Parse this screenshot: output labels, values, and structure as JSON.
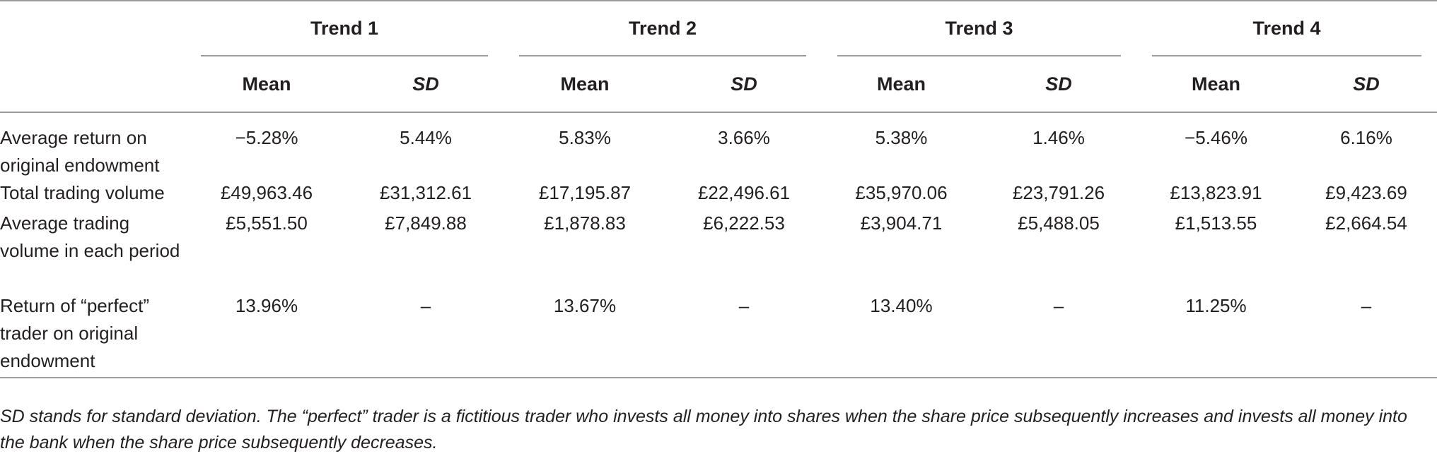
{
  "table": {
    "groups": [
      "Trend 1",
      "Trend 2",
      "Trend 3",
      "Trend 4"
    ],
    "subheaders": {
      "mean": "Mean",
      "sd": "SD"
    },
    "rows": [
      {
        "label": "Average return on original endowment",
        "values": [
          "−5.28%",
          "5.44%",
          "5.83%",
          "3.66%",
          "5.38%",
          "1.46%",
          "−5.46%",
          "6.16%"
        ]
      },
      {
        "label": "Total trading volume",
        "values": [
          "£49,963.46",
          "£31,312.61",
          "£17,195.87",
          "£22,496.61",
          "£35,970.06",
          "£23,791.26",
          "£13,823.91",
          "£9,423.69"
        ]
      },
      {
        "label": "Average trading volume in each period",
        "values": [
          "£5,551.50",
          "£7,849.88",
          "£1,878.83",
          "£6,222.53",
          "£3,904.71",
          "£5,488.05",
          "£1,513.55",
          "£2,664.54"
        ]
      },
      {
        "label": "Return of “perfect” trader on original endowment",
        "values": [
          "13.96%",
          "–",
          "13.67%",
          "–",
          "13.40%",
          "–",
          "11.25%",
          "–"
        ]
      }
    ]
  },
  "footnote": "SD stands for standard deviation. The “perfect” trader is a fictitious trader who invests all money into shares when the share price subsequently increases and invests all money into the bank when the share price subsequently decreases."
}
